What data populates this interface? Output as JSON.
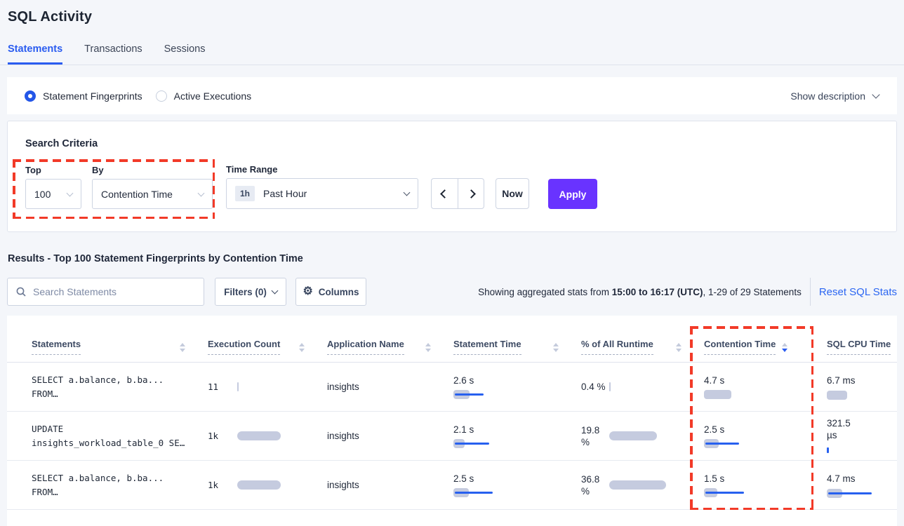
{
  "page_title": "SQL Activity",
  "tabs": {
    "statements": "Statements",
    "transactions": "Transactions",
    "sessions": "Sessions"
  },
  "view_options": {
    "fingerprints_label": "Statement Fingerprints",
    "active_executions_label": "Active Executions",
    "show_description_label": "Show description"
  },
  "search_criteria": {
    "title": "Search Criteria",
    "top_label": "Top",
    "top_value": "100",
    "by_label": "By",
    "by_value": "Contention Time",
    "time_range_label": "Time Range",
    "time_badge": "1h",
    "time_value": "Past Hour",
    "now_label": "Now",
    "apply_label": "Apply"
  },
  "results": {
    "title": "Results - Top 100 Statement Fingerprints by Contention Time",
    "search_placeholder": "Search Statements",
    "filters_label": "Filters (0)",
    "columns_label": "Columns",
    "showing_prefix": "Showing aggregated stats from ",
    "showing_bold": "15:00 to 16:17 (UTC)",
    "showing_suffix": ", 1-29 of 29 Statements",
    "reset_label": "Reset SQL Stats"
  },
  "colors": {
    "accent_blue": "#2a5cf0",
    "apply_purple": "#6933ff",
    "highlight_red": "#f23a28",
    "bar_gray": "#c5cbdf",
    "bar_blue": "#2760ef"
  },
  "table": {
    "columns": [
      "Statements",
      "Execution Count",
      "Application Name",
      "Statement Time",
      "% of All Runtime",
      "Contention Time",
      "SQL CPU Time"
    ],
    "sorted_column": "Contention Time",
    "sort_direction": "desc",
    "rows": [
      {
        "statement_line1": "SELECT a.balance, b.ba...",
        "statement_line2": "FROM…",
        "exec": {
          "value": "11",
          "bar": 2
        },
        "app": "insights",
        "stmt_time": {
          "value": "2.6 s",
          "bar": 23,
          "line": 41
        },
        "runtime": {
          "value": "0.4 %",
          "bar": 2
        },
        "contention": {
          "value": "4.7 s",
          "bar": 39,
          "line": 0
        },
        "cpu": {
          "value": "6.7 ms",
          "bar": 29,
          "line": 0,
          "tick": false
        }
      },
      {
        "statement_line1": "UPDATE",
        "statement_line2": "insights_workload_table_0 SE…",
        "exec": {
          "value": "1k",
          "bar": 62
        },
        "app": "insights",
        "stmt_time": {
          "value": "2.1 s",
          "bar": 16,
          "line": 49
        },
        "runtime": {
          "value": "19.8 %",
          "bar": 68
        },
        "contention": {
          "value": "2.5 s",
          "bar": 21,
          "line": 48
        },
        "cpu": {
          "value": "321.5 µs",
          "bar": 0,
          "line": 0,
          "tick": true
        }
      },
      {
        "statement_line1": "SELECT a.balance, b.ba...",
        "statement_line2": "FROM…",
        "exec": {
          "value": "1k",
          "bar": 62
        },
        "app": "insights",
        "stmt_time": {
          "value": "2.5 s",
          "bar": 22,
          "line": 54
        },
        "runtime": {
          "value": "36.8 %",
          "bar": 81
        },
        "contention": {
          "value": "1.5 s",
          "bar": 19,
          "line": 55
        },
        "cpu": {
          "value": "4.7 ms",
          "bar": 22,
          "line": 62,
          "tick": false
        }
      }
    ]
  }
}
